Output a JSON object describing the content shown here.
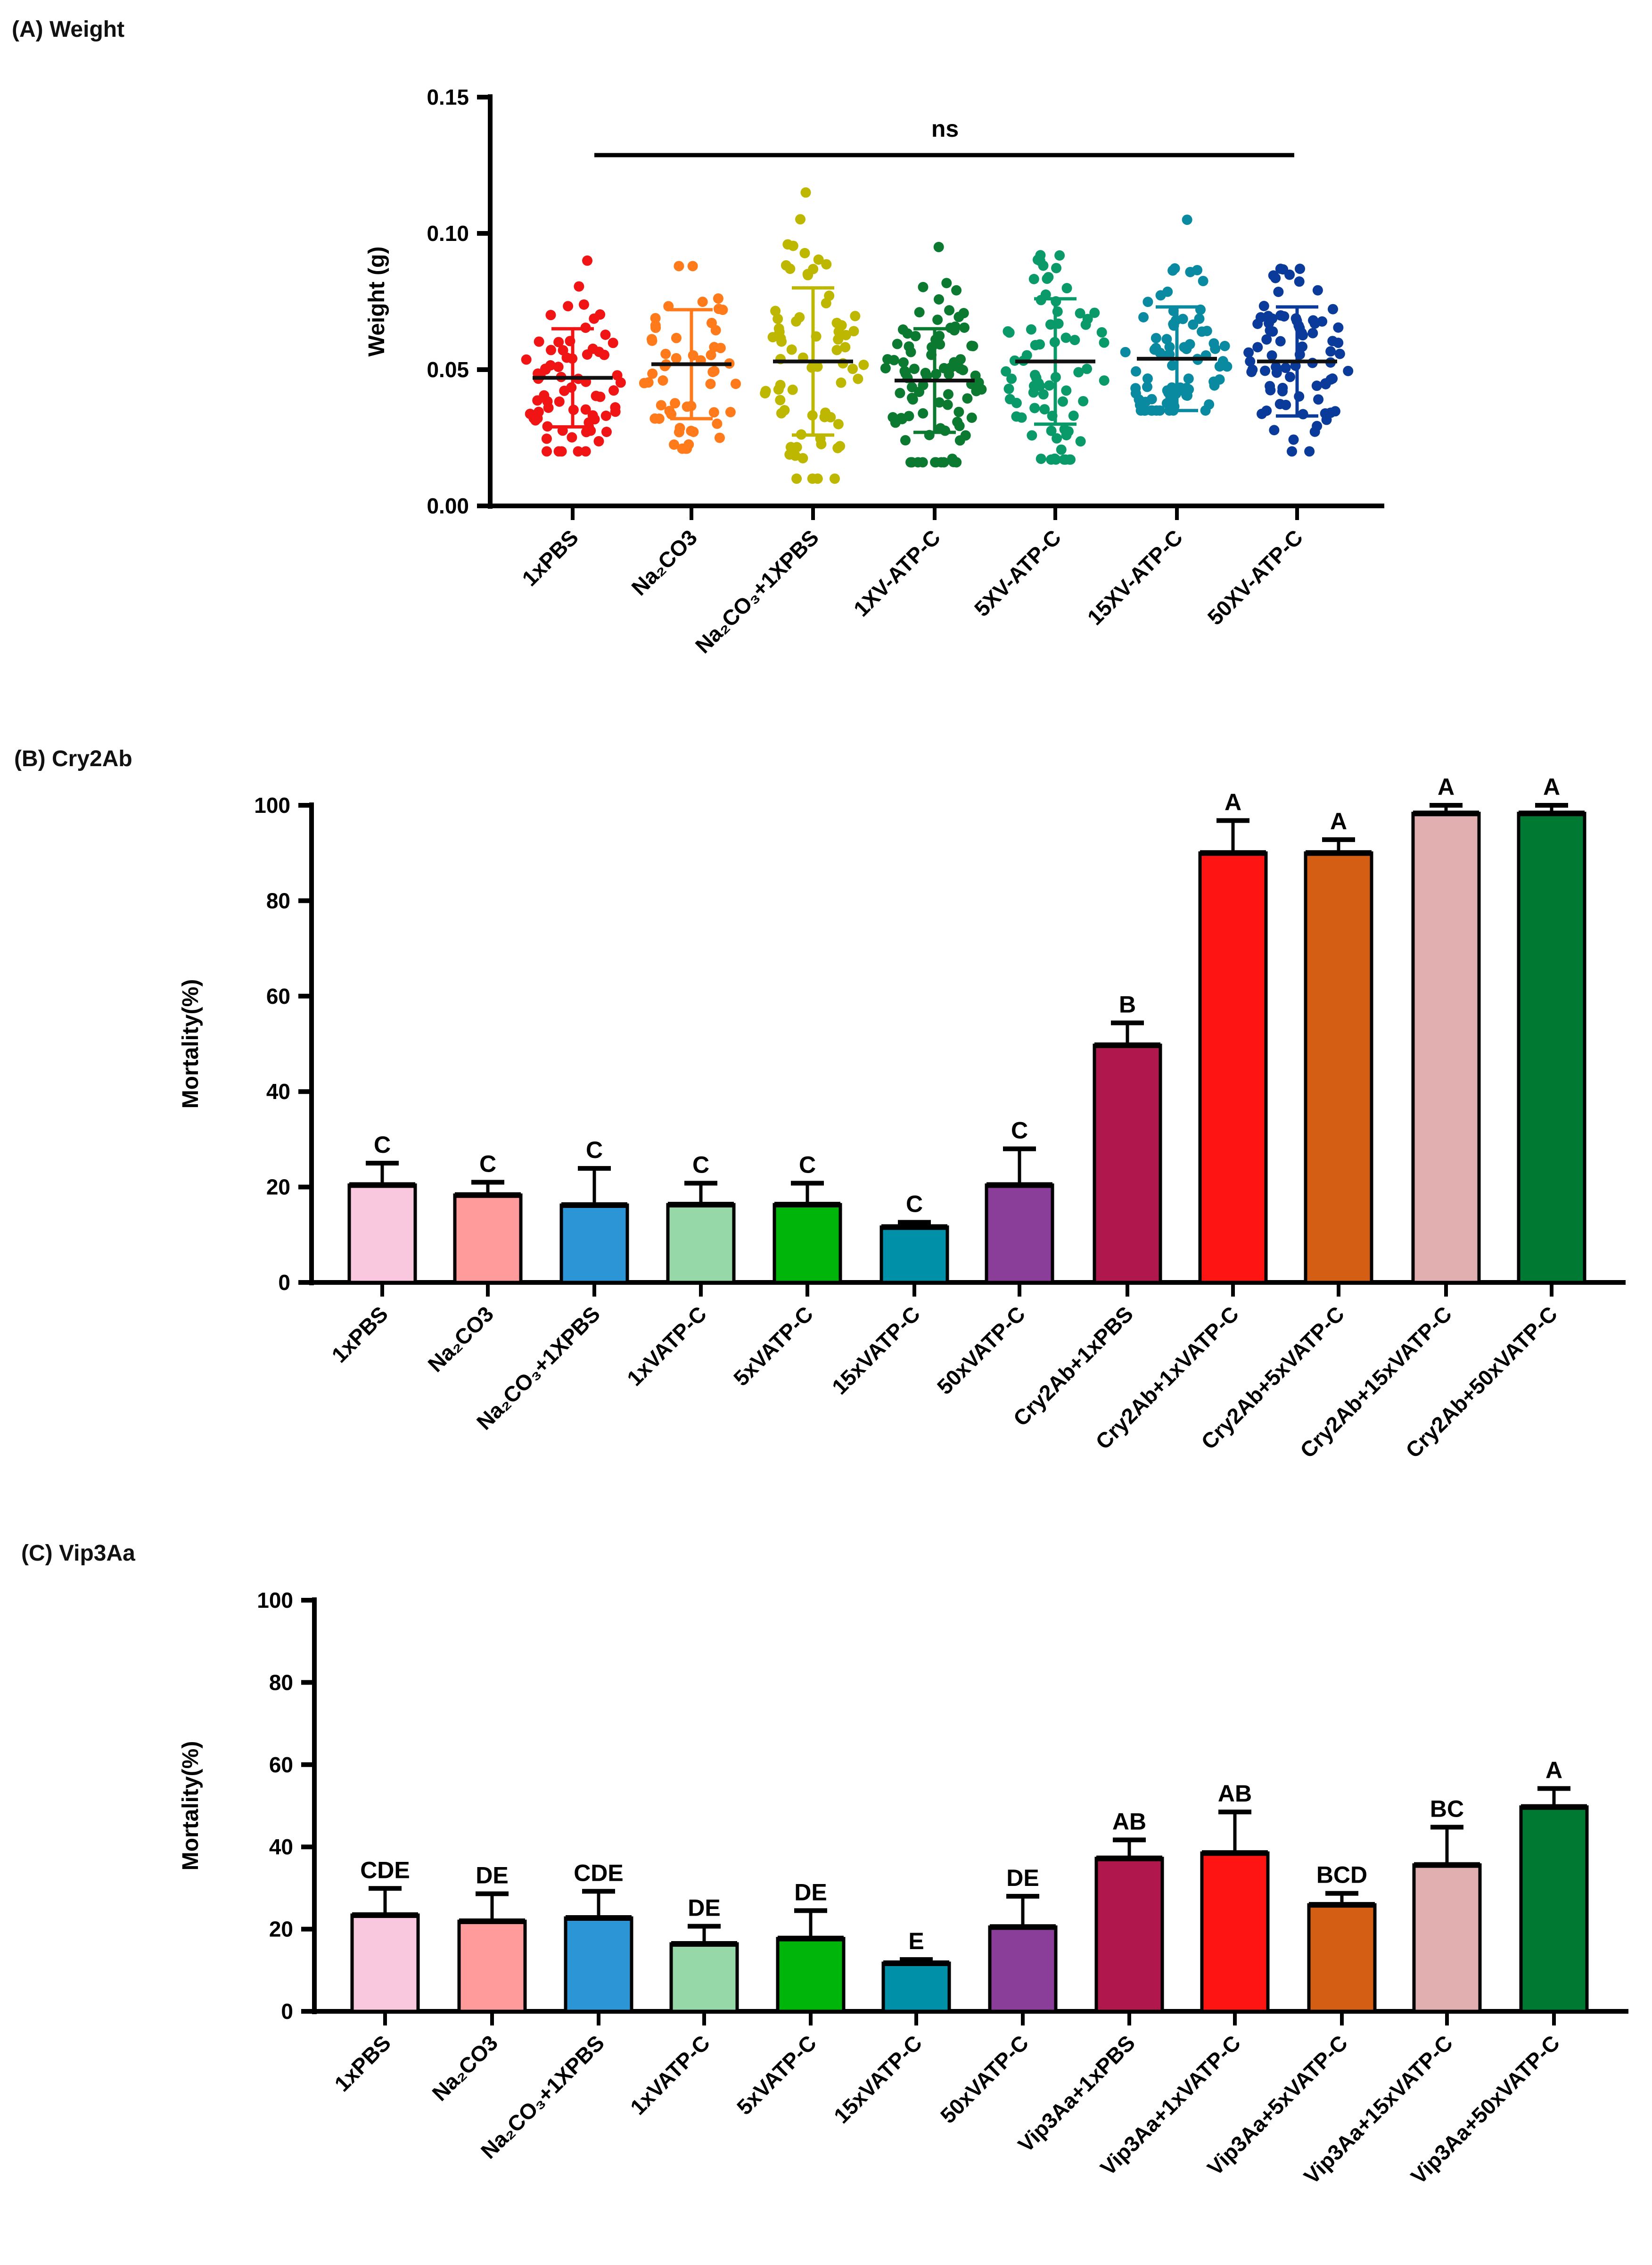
{
  "chart_data": [
    {
      "type": "scatter",
      "title": "(A) Weight",
      "ylabel": "Weight (g)",
      "xlabel": "",
      "ylim": [
        0,
        0.15
      ],
      "yticks": [
        "0.00",
        "0.05",
        "0.10",
        "0.15"
      ],
      "annotation": "ns",
      "categories": [
        "1xPBS",
        "Na₂CO3",
        "Na₂CO₃+1XPBS",
        "1XV-ATP-C",
        "5XV-ATP-C",
        "15XV-ATP-C",
        "50XV-ATP-C"
      ],
      "colors": [
        "#F01414",
        "#FF7A1A",
        "#BDB700",
        "#0B7A30",
        "#0A9A6A",
        "#0A8AA0",
        "#0A3A9A"
      ],
      "mean": [
        0.047,
        0.052,
        0.053,
        0.046,
        0.053,
        0.054,
        0.053
      ],
      "sd": [
        0.018,
        0.02,
        0.027,
        0.019,
        0.023,
        0.019,
        0.02
      ],
      "min": [
        0.02,
        0.021,
        0.01,
        0.016,
        0.017,
        0.035,
        0.02
      ],
      "max": [
        0.09,
        0.088,
        0.115,
        0.095,
        0.092,
        0.105,
        0.087
      ],
      "n": [
        70,
        55,
        70,
        90,
        75,
        80,
        80
      ]
    },
    {
      "type": "bar",
      "title": "(B) Cry2Ab",
      "ylabel": "Mortality(%)",
      "xlabel": "",
      "ylim": [
        0,
        100
      ],
      "yticks": [
        "0",
        "20",
        "40",
        "60",
        "80",
        "100"
      ],
      "categories": [
        "1xPBS",
        "Na₂CO3",
        "Na₂CO₃+1XPBS",
        "1xVATP-C",
        "5xVATP-C",
        "15xVATP-C",
        "50xVATP-C",
        "Cry2Ab+1xPBS",
        "Cry2Ab+1xVATP-C",
        "Cry2Ab+5xVATP-C",
        "Cry2Ab+15xVATP-C",
        "Cry2Ab+50xVATP-C"
      ],
      "values": [
        20.4,
        18.3,
        16.2,
        16.3,
        16.3,
        11.6,
        20.4,
        49.7,
        90.0,
        90.0,
        98.3,
        98.3
      ],
      "error_upper": [
        25.0,
        21.0,
        23.9,
        20.8,
        20.8,
        12.6,
        28.0,
        54.4,
        96.8,
        92.8,
        100.0,
        100.0
      ],
      "letters": [
        "C",
        "C",
        "C",
        "C",
        "C",
        "C",
        "C",
        "B",
        "A",
        "A",
        "A",
        "A"
      ],
      "colors": [
        "#F9C8DE",
        "#FF9B9B",
        "#2C95D6",
        "#96D8A8",
        "#00B50A",
        "#0090A8",
        "#8A3D99",
        "#B0174C",
        "#FF1414",
        "#D35E14",
        "#E1AFB0",
        "#007A33"
      ]
    },
    {
      "type": "bar",
      "title": "(C) Vip3Aa",
      "ylabel": "Mortality(%)",
      "xlabel": "",
      "ylim": [
        0,
        100
      ],
      "yticks": [
        "0",
        "20",
        "40",
        "60",
        "80",
        "100"
      ],
      "categories": [
        "1xPBS",
        "Na₂CO3",
        "Na₂CO₃+1XPBS",
        "1xVATP-C",
        "5xVATP-C",
        "15xVATP-C",
        "50xVATP-C",
        "Vip3Aa+1xPBS",
        "Vip3Aa+1xVATP-C",
        "Vip3Aa+5xVATP-C",
        "Vip3Aa+15xVATP-C",
        "Vip3Aa+50xVATP-C"
      ],
      "values": [
        23.4,
        21.9,
        22.7,
        16.4,
        17.7,
        11.7,
        20.5,
        37.2,
        38.5,
        25.9,
        35.6,
        49.7
      ],
      "error_upper": [
        29.9,
        28.6,
        29.2,
        20.7,
        24.5,
        12.6,
        28.0,
        41.7,
        48.5,
        28.7,
        44.8,
        54.2
      ],
      "letters": [
        "CDE",
        "DE",
        "CDE",
        "DE",
        "DE",
        "E",
        "DE",
        "AB",
        "AB",
        "BCD",
        "BC",
        "A"
      ],
      "colors": [
        "#F9C8DE",
        "#FF9B9B",
        "#2C95D6",
        "#96D8A8",
        "#00B50A",
        "#0090A8",
        "#8A3D99",
        "#B0174C",
        "#FF1414",
        "#D35E14",
        "#E1AFB0",
        "#007A33"
      ]
    }
  ]
}
